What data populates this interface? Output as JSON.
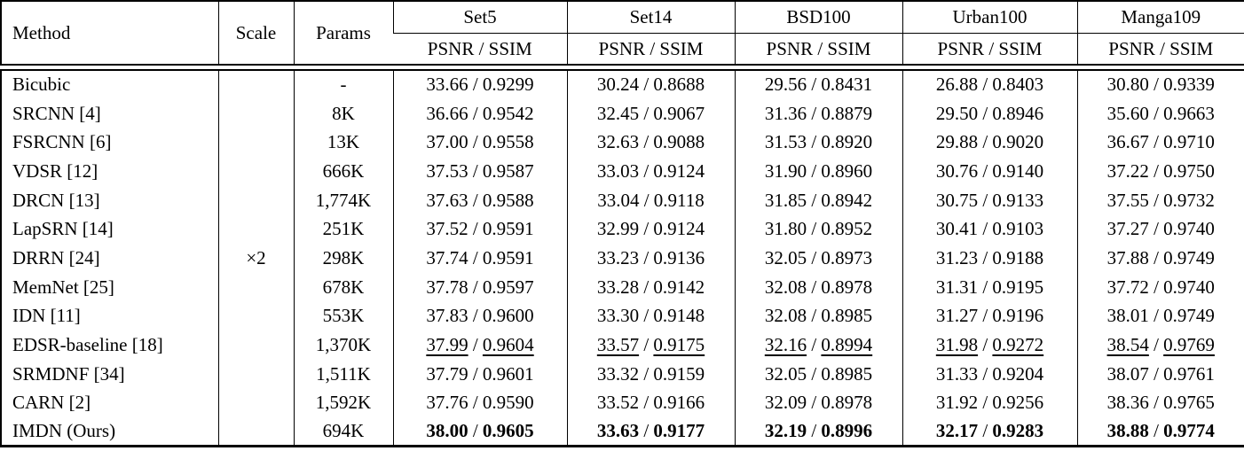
{
  "table": {
    "header": {
      "method": "Method",
      "scale": "Scale",
      "params": "Params",
      "benchmarks": [
        "Set5",
        "Set14",
        "BSD100",
        "Urban100",
        "Manga109"
      ],
      "metric": "PSNR / SSIM"
    },
    "scale_value": "×2",
    "separator": " / ",
    "rows": [
      {
        "method": "Bicubic",
        "params": "-",
        "style": "normal",
        "results": [
          [
            "33.66",
            "0.9299"
          ],
          [
            "30.24",
            "0.8688"
          ],
          [
            "29.56",
            "0.8431"
          ],
          [
            "26.88",
            "0.8403"
          ],
          [
            "30.80",
            "0.9339"
          ]
        ]
      },
      {
        "method": "SRCNN [4]",
        "params": "8K",
        "style": "normal",
        "results": [
          [
            "36.66",
            "0.9542"
          ],
          [
            "32.45",
            "0.9067"
          ],
          [
            "31.36",
            "0.8879"
          ],
          [
            "29.50",
            "0.8946"
          ],
          [
            "35.60",
            "0.9663"
          ]
        ]
      },
      {
        "method": "FSRCNN [6]",
        "params": "13K",
        "style": "normal",
        "results": [
          [
            "37.00",
            "0.9558"
          ],
          [
            "32.63",
            "0.9088"
          ],
          [
            "31.53",
            "0.8920"
          ],
          [
            "29.88",
            "0.9020"
          ],
          [
            "36.67",
            "0.9710"
          ]
        ]
      },
      {
        "method": "VDSR [12]",
        "params": "666K",
        "style": "normal",
        "results": [
          [
            "37.53",
            "0.9587"
          ],
          [
            "33.03",
            "0.9124"
          ],
          [
            "31.90",
            "0.8960"
          ],
          [
            "30.76",
            "0.9140"
          ],
          [
            "37.22",
            "0.9750"
          ]
        ]
      },
      {
        "method": "DRCN [13]",
        "params": "1,774K",
        "style": "normal",
        "results": [
          [
            "37.63",
            "0.9588"
          ],
          [
            "33.04",
            "0.9118"
          ],
          [
            "31.85",
            "0.8942"
          ],
          [
            "30.75",
            "0.9133"
          ],
          [
            "37.55",
            "0.9732"
          ]
        ]
      },
      {
        "method": "LapSRN [14]",
        "params": "251K",
        "style": "normal",
        "results": [
          [
            "37.52",
            "0.9591"
          ],
          [
            "32.99",
            "0.9124"
          ],
          [
            "31.80",
            "0.8952"
          ],
          [
            "30.41",
            "0.9103"
          ],
          [
            "37.27",
            "0.9740"
          ]
        ]
      },
      {
        "method": "DRRN [24]",
        "params": "298K",
        "style": "normal",
        "results": [
          [
            "37.74",
            "0.9591"
          ],
          [
            "33.23",
            "0.9136"
          ],
          [
            "32.05",
            "0.8973"
          ],
          [
            "31.23",
            "0.9188"
          ],
          [
            "37.88",
            "0.9749"
          ]
        ]
      },
      {
        "method": "MemNet [25]",
        "params": "678K",
        "style": "normal",
        "results": [
          [
            "37.78",
            "0.9597"
          ],
          [
            "33.28",
            "0.9142"
          ],
          [
            "32.08",
            "0.8978"
          ],
          [
            "31.31",
            "0.9195"
          ],
          [
            "37.72",
            "0.9740"
          ]
        ]
      },
      {
        "method": "IDN [11]",
        "params": "553K",
        "style": "normal",
        "results": [
          [
            "37.83",
            "0.9600"
          ],
          [
            "33.30",
            "0.9148"
          ],
          [
            "32.08",
            "0.8985"
          ],
          [
            "31.27",
            "0.9196"
          ],
          [
            "38.01",
            "0.9749"
          ]
        ]
      },
      {
        "method": "EDSR-baseline [18]",
        "params": "1,370K",
        "style": "underline",
        "results": [
          [
            "37.99",
            "0.9604"
          ],
          [
            "33.57",
            "0.9175"
          ],
          [
            "32.16",
            "0.8994"
          ],
          [
            "31.98",
            "0.9272"
          ],
          [
            "38.54",
            "0.9769"
          ]
        ]
      },
      {
        "method": "SRMDNF [34]",
        "params": "1,511K",
        "style": "normal",
        "results": [
          [
            "37.79",
            "0.9601"
          ],
          [
            "33.32",
            "0.9159"
          ],
          [
            "32.05",
            "0.8985"
          ],
          [
            "31.33",
            "0.9204"
          ],
          [
            "38.07",
            "0.9761"
          ]
        ]
      },
      {
        "method": "CARN [2]",
        "params": "1,592K",
        "style": "normal",
        "results": [
          [
            "37.76",
            "0.9590"
          ],
          [
            "33.52",
            "0.9166"
          ],
          [
            "32.09",
            "0.8978"
          ],
          [
            "31.92",
            "0.9256"
          ],
          [
            "38.36",
            "0.9765"
          ]
        ]
      },
      {
        "method": "IMDN (Ours)",
        "params": "694K",
        "style": "bold",
        "results": [
          [
            "38.00",
            "0.9605"
          ],
          [
            "33.63",
            "0.9177"
          ],
          [
            "32.19",
            "0.8996"
          ],
          [
            "32.17",
            "0.9283"
          ],
          [
            "38.88",
            "0.9774"
          ]
        ]
      }
    ]
  }
}
